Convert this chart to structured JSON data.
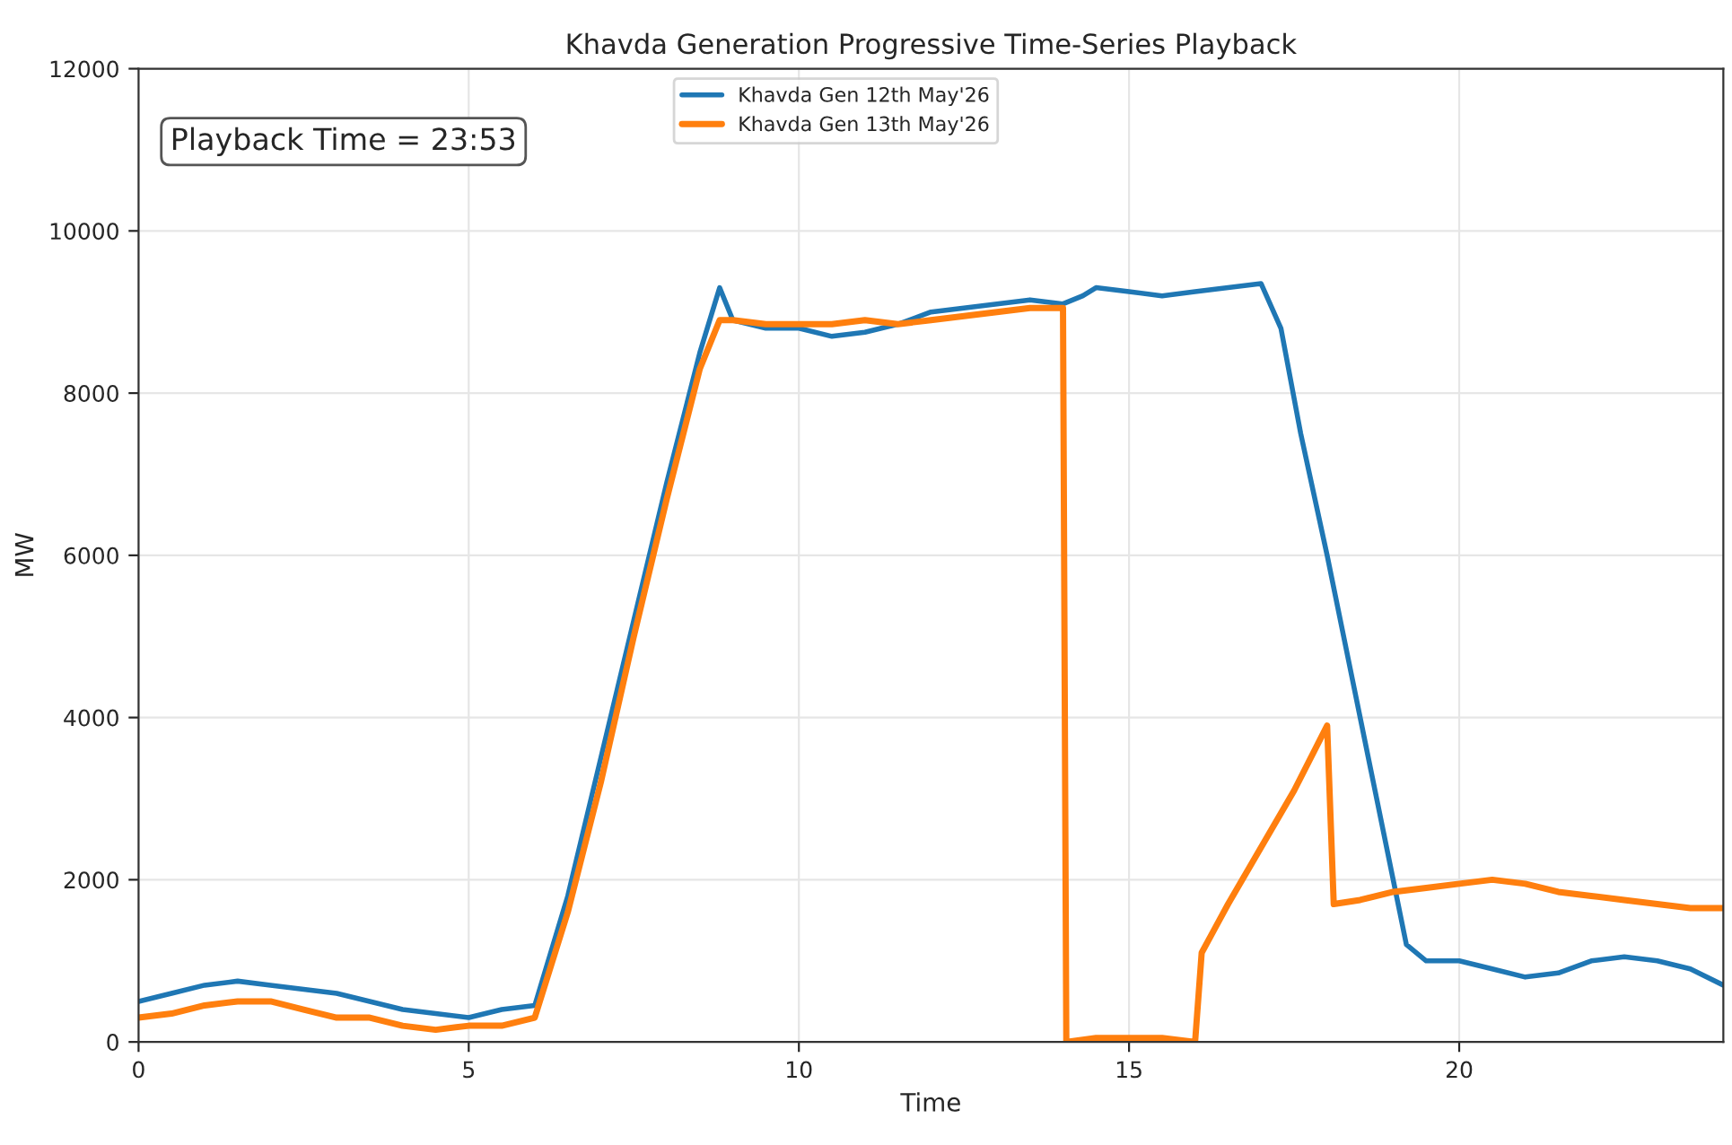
{
  "chart_data": {
    "type": "line",
    "title": "Khavda Generation Progressive Time-Series Playback",
    "xlabel": "Time",
    "ylabel": "MW",
    "annotations": [
      "Playback Time = 23:53"
    ],
    "xlim": [
      0,
      24
    ],
    "xticks": [
      0,
      5,
      10,
      15,
      20
    ],
    "ylim": [
      0,
      12000
    ],
    "yticks": [
      0,
      2000,
      4000,
      6000,
      8000,
      10000,
      12000
    ],
    "grid": true,
    "legend": "top",
    "line_style": "solid",
    "series": [
      {
        "name": "Khavda Gen 12th May'26",
        "color": "#1f77b4",
        "x": [
          0,
          0.5,
          1,
          1.5,
          2,
          2.5,
          3,
          3.5,
          4,
          4.5,
          5,
          5.5,
          6,
          6.5,
          7,
          7.5,
          8,
          8.5,
          8.8,
          9,
          9.5,
          10,
          10.5,
          11,
          11.5,
          12,
          12.5,
          13,
          13.5,
          14,
          14.3,
          14.5,
          15,
          15.5,
          16,
          16.5,
          17,
          17.3,
          17.6,
          18,
          18.5,
          19,
          19.2,
          19.5,
          20,
          20.5,
          21,
          21.5,
          22,
          22.5,
          23,
          23.5,
          24
        ],
        "values": [
          500,
          600,
          700,
          750,
          700,
          650,
          600,
          500,
          400,
          350,
          300,
          400,
          450,
          1800,
          3500,
          5200,
          6900,
          8500,
          9300,
          8900,
          8800,
          8800,
          8700,
          8750,
          8850,
          9000,
          9050,
          9100,
          9150,
          9100,
          9200,
          9300,
          9250,
          9200,
          9250,
          9300,
          9350,
          8800,
          7500,
          6000,
          4000,
          2000,
          1200,
          1000,
          1000,
          900,
          800,
          850,
          1000,
          1050,
          1000,
          900,
          700
        ]
      },
      {
        "name": "Khavda Gen 13th May'26",
        "color": "#ff7f0e",
        "x": [
          0,
          0.5,
          1,
          1.5,
          2,
          2.5,
          3,
          3.5,
          4,
          4.5,
          5,
          5.5,
          6,
          6.5,
          7,
          7.5,
          8,
          8.5,
          8.8,
          9,
          9.5,
          10,
          10.5,
          11,
          11.5,
          12,
          12.5,
          13,
          13.5,
          14,
          14.05,
          14.5,
          15,
          15.5,
          16,
          16.1,
          16.3,
          16.5,
          17,
          17.5,
          18,
          18.1,
          18.5,
          19,
          19.5,
          20,
          20.5,
          21,
          21.5,
          22,
          22.5,
          23,
          23.5,
          24
        ],
        "values": [
          300,
          350,
          450,
          500,
          500,
          400,
          300,
          300,
          200,
          150,
          200,
          200,
          300,
          1600,
          3200,
          5000,
          6700,
          8300,
          8900,
          8900,
          8850,
          8850,
          8850,
          8900,
          8850,
          8900,
          8950,
          9000,
          9050,
          9050,
          0,
          50,
          50,
          50,
          0,
          1100,
          1400,
          1700,
          2400,
          3100,
          3900,
          1700,
          1750,
          1850,
          1900,
          1950,
          2000,
          1950,
          1850,
          1800,
          1750,
          1700,
          1650,
          1650
        ]
      }
    ]
  }
}
